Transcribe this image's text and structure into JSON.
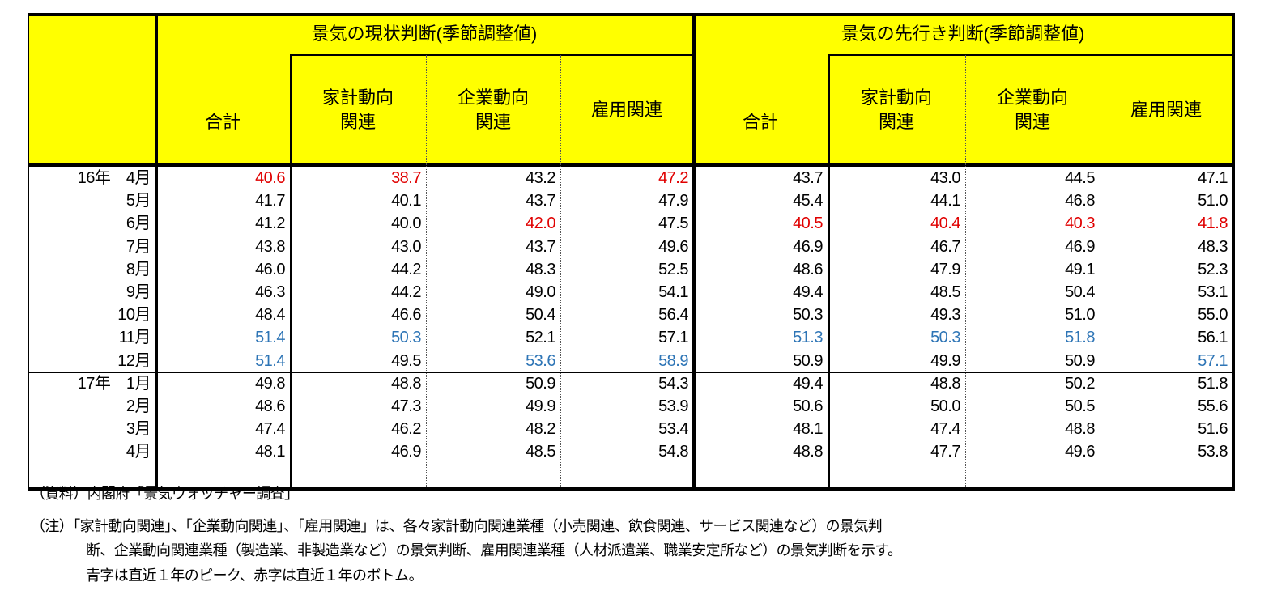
{
  "table": {
    "group_headers": [
      "景気の現状判断(季節調整値)",
      "景気の先行き判断(季節調整値)"
    ],
    "sub_headers": [
      "合計",
      "家計動向\n関連",
      "企業動向\n関連",
      "雇用関連"
    ],
    "colors": {
      "header_bg": "#ffff00",
      "peak": "#2e75b6",
      "bottom": "#e00000",
      "normal": "#000000"
    },
    "rows": [
      {
        "label": "16年　4月",
        "values": [
          "40.6",
          "38.7",
          "43.2",
          "47.2",
          "43.7",
          "43.0",
          "44.5",
          "47.1"
        ],
        "marks": [
          "b",
          "b",
          "",
          "b",
          "",
          "",
          "",
          ""
        ]
      },
      {
        "label": "5月",
        "values": [
          "41.7",
          "40.1",
          "43.7",
          "47.9",
          "45.4",
          "44.1",
          "46.8",
          "51.0"
        ],
        "marks": [
          "",
          "",
          "",
          "",
          "",
          "",
          "",
          ""
        ]
      },
      {
        "label": "6月",
        "values": [
          "41.2",
          "40.0",
          "42.0",
          "47.5",
          "40.5",
          "40.4",
          "40.3",
          "41.8"
        ],
        "marks": [
          "",
          "",
          "b",
          "",
          "b",
          "b",
          "b",
          "b"
        ]
      },
      {
        "label": "7月",
        "values": [
          "43.8",
          "43.0",
          "43.7",
          "49.6",
          "46.9",
          "46.7",
          "46.9",
          "48.3"
        ],
        "marks": [
          "",
          "",
          "",
          "",
          "",
          "",
          "",
          ""
        ]
      },
      {
        "label": "8月",
        "values": [
          "46.0",
          "44.2",
          "48.3",
          "52.5",
          "48.6",
          "47.9",
          "49.1",
          "52.3"
        ],
        "marks": [
          "",
          "",
          "",
          "",
          "",
          "",
          "",
          ""
        ]
      },
      {
        "label": "9月",
        "values": [
          "46.3",
          "44.2",
          "49.0",
          "54.1",
          "49.4",
          "48.5",
          "50.4",
          "53.1"
        ],
        "marks": [
          "",
          "",
          "",
          "",
          "",
          "",
          "",
          ""
        ]
      },
      {
        "label": "10月",
        "values": [
          "48.4",
          "46.6",
          "50.4",
          "56.4",
          "50.3",
          "49.3",
          "51.0",
          "55.0"
        ],
        "marks": [
          "",
          "",
          "",
          "",
          "",
          "",
          "",
          ""
        ]
      },
      {
        "label": "11月",
        "values": [
          "51.4",
          "50.3",
          "52.1",
          "57.1",
          "51.3",
          "50.3",
          "51.8",
          "56.1"
        ],
        "marks": [
          "p",
          "p",
          "",
          "",
          "p",
          "p",
          "p",
          ""
        ]
      },
      {
        "label": "12月",
        "values": [
          "51.4",
          "49.5",
          "53.6",
          "58.9",
          "50.9",
          "49.9",
          "50.9",
          "57.1"
        ],
        "marks": [
          "p",
          "",
          "p",
          "p",
          "",
          "",
          "",
          "p"
        ]
      },
      {
        "label": "17年　1月",
        "values": [
          "49.8",
          "48.8",
          "50.9",
          "54.3",
          "49.4",
          "48.8",
          "50.2",
          "51.8"
        ],
        "marks": [
          "",
          "",
          "",
          "",
          "",
          "",
          "",
          ""
        ]
      },
      {
        "label": "2月",
        "values": [
          "48.6",
          "47.3",
          "49.9",
          "53.9",
          "50.6",
          "50.0",
          "50.5",
          "55.6"
        ],
        "marks": [
          "",
          "",
          "",
          "",
          "",
          "",
          "",
          ""
        ]
      },
      {
        "label": "3月",
        "values": [
          "47.4",
          "46.2",
          "48.2",
          "53.4",
          "48.1",
          "47.4",
          "48.8",
          "51.6"
        ],
        "marks": [
          "",
          "",
          "",
          "",
          "",
          "",
          "",
          ""
        ]
      },
      {
        "label": "4月",
        "values": [
          "48.1",
          "46.9",
          "48.5",
          "54.8",
          "48.8",
          "47.7",
          "49.6",
          "53.8"
        ],
        "marks": [
          "",
          "",
          "",
          "",
          "",
          "",
          "",
          ""
        ]
      }
    ]
  },
  "notes": {
    "source": "（資料）内閣府「景気ウォッチャー調査」",
    "note_line1": "（注）「家計動向関連」、「企業動向関連」、「雇用関連」は、各々家計動向関連業種（小売関連、飲食関連、サービス関連など）の景気判",
    "note_line2": "断、企業動向関連業種（製造業、非製造業など）の景気判断、雇用関連業種（人材派遣業、職業安定所など）の景気判断を示す。",
    "note_line3": "青字は直近１年のピーク、赤字は直近１年のボトム。"
  }
}
